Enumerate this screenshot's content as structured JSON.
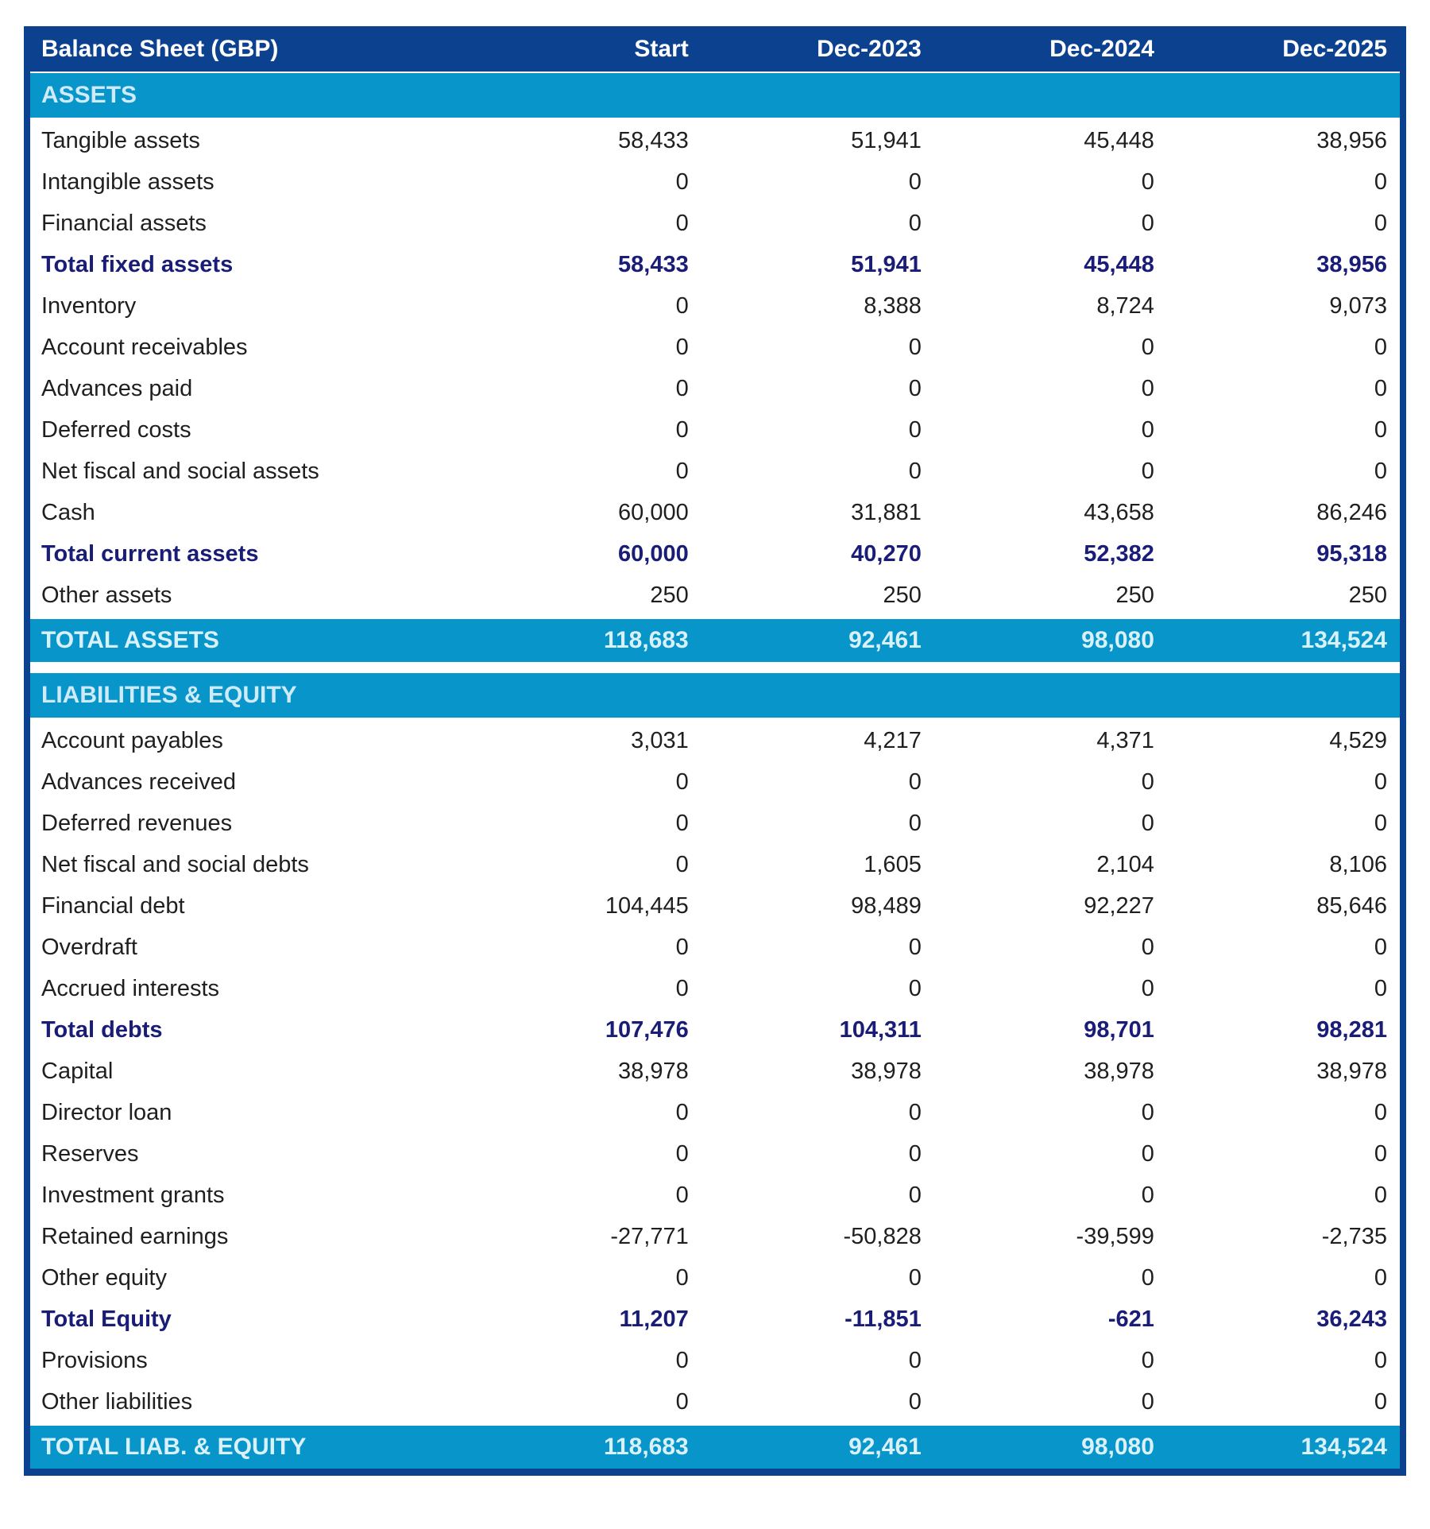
{
  "table": {
    "title": "Balance Sheet (GBP)",
    "columns": [
      "Start",
      "Dec-2023",
      "Dec-2024",
      "Dec-2025"
    ],
    "sections": [
      {
        "name": "ASSETS",
        "rows": [
          {
            "label": "Tangible assets",
            "values": [
              "58,433",
              "51,941",
              "45,448",
              "38,956"
            ],
            "style": "normal"
          },
          {
            "label": "Intangible assets",
            "values": [
              "0",
              "0",
              "0",
              "0"
            ],
            "style": "normal"
          },
          {
            "label": "Financial assets",
            "values": [
              "0",
              "0",
              "0",
              "0"
            ],
            "style": "normal"
          },
          {
            "label": "Total fixed assets",
            "values": [
              "58,433",
              "51,941",
              "45,448",
              "38,956"
            ],
            "style": "subtotal"
          },
          {
            "label": "Inventory",
            "values": [
              "0",
              "8,388",
              "8,724",
              "9,073"
            ],
            "style": "normal"
          },
          {
            "label": "Account receivables",
            "values": [
              "0",
              "0",
              "0",
              "0"
            ],
            "style": "normal"
          },
          {
            "label": "Advances paid",
            "values": [
              "0",
              "0",
              "0",
              "0"
            ],
            "style": "normal"
          },
          {
            "label": "Deferred costs",
            "values": [
              "0",
              "0",
              "0",
              "0"
            ],
            "style": "normal"
          },
          {
            "label": "Net fiscal and social assets",
            "values": [
              "0",
              "0",
              "0",
              "0"
            ],
            "style": "normal"
          },
          {
            "label": "Cash",
            "values": [
              "60,000",
              "31,881",
              "43,658",
              "86,246"
            ],
            "style": "normal"
          },
          {
            "label": "Total current assets",
            "values": [
              "60,000",
              "40,270",
              "52,382",
              "95,318"
            ],
            "style": "subtotal"
          },
          {
            "label": "Other assets",
            "values": [
              "250",
              "250",
              "250",
              "250"
            ],
            "style": "normal"
          },
          {
            "label": "TOTAL ASSETS",
            "values": [
              "118,683",
              "92,461",
              "98,080",
              "134,524"
            ],
            "style": "total"
          }
        ]
      },
      {
        "name": "LIABILITIES & EQUITY",
        "rows": [
          {
            "label": "Account payables",
            "values": [
              "3,031",
              "4,217",
              "4,371",
              "4,529"
            ],
            "style": "normal"
          },
          {
            "label": "Advances received",
            "values": [
              "0",
              "0",
              "0",
              "0"
            ],
            "style": "normal"
          },
          {
            "label": "Deferred revenues",
            "values": [
              "0",
              "0",
              "0",
              "0"
            ],
            "style": "normal"
          },
          {
            "label": "Net fiscal and social debts",
            "values": [
              "0",
              "1,605",
              "2,104",
              "8,106"
            ],
            "style": "normal"
          },
          {
            "label": "Financial debt",
            "values": [
              "104,445",
              "98,489",
              "92,227",
              "85,646"
            ],
            "style": "normal"
          },
          {
            "label": "Overdraft",
            "values": [
              "0",
              "0",
              "0",
              "0"
            ],
            "style": "normal"
          },
          {
            "label": "Accrued interests",
            "values": [
              "0",
              "0",
              "0",
              "0"
            ],
            "style": "normal"
          },
          {
            "label": "Total debts",
            "values": [
              "107,476",
              "104,311",
              "98,701",
              "98,281"
            ],
            "style": "subtotal"
          },
          {
            "label": "Capital",
            "values": [
              "38,978",
              "38,978",
              "38,978",
              "38,978"
            ],
            "style": "normal"
          },
          {
            "label": "Director loan",
            "values": [
              "0",
              "0",
              "0",
              "0"
            ],
            "style": "normal"
          },
          {
            "label": "Reserves",
            "values": [
              "0",
              "0",
              "0",
              "0"
            ],
            "style": "normal"
          },
          {
            "label": "Investment grants",
            "values": [
              "0",
              "0",
              "0",
              "0"
            ],
            "style": "normal"
          },
          {
            "label": "Retained earnings",
            "values": [
              "-27,771",
              "-50,828",
              "-39,599",
              "-2,735"
            ],
            "style": "normal"
          },
          {
            "label": "Other equity",
            "values": [
              "0",
              "0",
              "0",
              "0"
            ],
            "style": "normal"
          },
          {
            "label": "Total Equity",
            "values": [
              "11,207",
              "-11,851",
              "-621",
              "36,243"
            ],
            "style": "subtotal"
          },
          {
            "label": "Provisions",
            "values": [
              "0",
              "0",
              "0",
              "0"
            ],
            "style": "normal"
          },
          {
            "label": "Other liabilities",
            "values": [
              "0",
              "0",
              "0",
              "0"
            ],
            "style": "normal"
          },
          {
            "label": "TOTAL LIAB. & EQUITY",
            "values": [
              "118,683",
              "92,461",
              "98,080",
              "134,524"
            ],
            "style": "total"
          }
        ]
      }
    ]
  },
  "colors": {
    "header_navy": "#0c4190",
    "section_blue": "#0795ca",
    "light_text_on_blue": "#cfeaf8",
    "subtotal_navy": "#1a1d78",
    "body_text": "#1f1f1f",
    "background": "#ffffff"
  }
}
